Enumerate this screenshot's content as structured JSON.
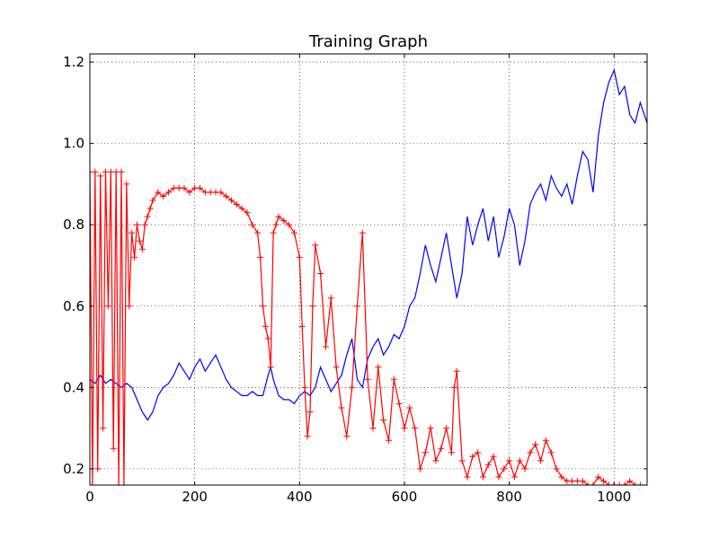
{
  "chart_data": {
    "type": "line",
    "title": "Training Graph",
    "xlabel": "",
    "ylabel": "",
    "xlim": [
      0,
      1063
    ],
    "ylim": [
      0.16,
      1.22
    ],
    "grid": true,
    "xticks": [
      0,
      200,
      400,
      600,
      800,
      1000
    ],
    "xtick_labels": [
      "0",
      "200",
      "400",
      "600",
      "800",
      "1000"
    ],
    "yticks": [
      0.2,
      0.4,
      0.6,
      0.8,
      1.0,
      1.2
    ],
    "ytick_labels": [
      "0.2",
      "0.4",
      "0.6",
      "0.8",
      "1.0",
      "1.2"
    ],
    "series": [
      {
        "color": "#0000ff",
        "marker": "none",
        "x": [
          0,
          10,
          20,
          30,
          40,
          50,
          60,
          70,
          80,
          90,
          100,
          110,
          120,
          130,
          140,
          150,
          160,
          170,
          180,
          190,
          200,
          210,
          220,
          230,
          240,
          250,
          260,
          270,
          280,
          290,
          300,
          310,
          320,
          330,
          340,
          345,
          350,
          360,
          370,
          380,
          390,
          400,
          410,
          420,
          430,
          440,
          450,
          460,
          470,
          480,
          490,
          500,
          510,
          520,
          530,
          540,
          550,
          560,
          570,
          580,
          590,
          600,
          610,
          620,
          630,
          640,
          650,
          660,
          670,
          680,
          690,
          700,
          710,
          720,
          730,
          740,
          750,
          760,
          770,
          780,
          790,
          800,
          810,
          820,
          830,
          840,
          850,
          860,
          870,
          880,
          890,
          900,
          910,
          920,
          930,
          940,
          950,
          960,
          970,
          980,
          990,
          1000,
          1010,
          1020,
          1030,
          1040,
          1050,
          1063
        ],
        "y": [
          0.42,
          0.41,
          0.43,
          0.41,
          0.42,
          0.41,
          0.4,
          0.41,
          0.4,
          0.37,
          0.34,
          0.32,
          0.34,
          0.38,
          0.4,
          0.41,
          0.43,
          0.46,
          0.44,
          0.42,
          0.45,
          0.47,
          0.44,
          0.46,
          0.48,
          0.45,
          0.42,
          0.4,
          0.39,
          0.38,
          0.38,
          0.39,
          0.38,
          0.38,
          0.43,
          0.45,
          0.42,
          0.38,
          0.37,
          0.37,
          0.36,
          0.38,
          0.39,
          0.38,
          0.4,
          0.45,
          0.42,
          0.39,
          0.41,
          0.43,
          0.48,
          0.52,
          0.42,
          0.4,
          0.47,
          0.5,
          0.52,
          0.48,
          0.5,
          0.53,
          0.52,
          0.55,
          0.6,
          0.62,
          0.68,
          0.75,
          0.7,
          0.66,
          0.72,
          0.78,
          0.7,
          0.62,
          0.68,
          0.82,
          0.75,
          0.8,
          0.84,
          0.76,
          0.82,
          0.72,
          0.77,
          0.84,
          0.8,
          0.7,
          0.76,
          0.85,
          0.88,
          0.9,
          0.86,
          0.92,
          0.89,
          0.87,
          0.9,
          0.85,
          0.92,
          0.98,
          0.96,
          0.88,
          1.02,
          1.1,
          1.15,
          1.18,
          1.12,
          1.14,
          1.07,
          1.05,
          1.1,
          1.05
        ]
      },
      {
        "color": "#ff0000",
        "marker": "+",
        "x": [
          0,
          5,
          10,
          15,
          20,
          25,
          30,
          35,
          40,
          45,
          50,
          55,
          60,
          65,
          70,
          75,
          80,
          85,
          90,
          95,
          100,
          105,
          110,
          115,
          120,
          130,
          140,
          150,
          160,
          170,
          180,
          190,
          200,
          210,
          220,
          230,
          240,
          250,
          260,
          270,
          280,
          290,
          300,
          310,
          320,
          325,
          330,
          335,
          340,
          345,
          350,
          355,
          360,
          370,
          380,
          390,
          400,
          405,
          410,
          415,
          420,
          425,
          430,
          440,
          450,
          460,
          470,
          480,
          490,
          500,
          510,
          520,
          530,
          540,
          550,
          560,
          570,
          580,
          590,
          600,
          610,
          620,
          630,
          640,
          650,
          660,
          670,
          680,
          690,
          695,
          700,
          710,
          720,
          730,
          740,
          750,
          760,
          770,
          780,
          790,
          800,
          810,
          820,
          830,
          840,
          850,
          860,
          870,
          880,
          890,
          900,
          910,
          920,
          930,
          940,
          950,
          960,
          970,
          980,
          990,
          1000,
          1010,
          1020,
          1030,
          1040,
          1050,
          1063
        ],
        "y": [
          0.93,
          0.16,
          0.93,
          0.2,
          0.92,
          0.3,
          0.93,
          0.6,
          0.93,
          0.25,
          0.93,
          0.16,
          0.93,
          0.16,
          0.9,
          0.6,
          0.78,
          0.72,
          0.8,
          0.76,
          0.74,
          0.8,
          0.82,
          0.84,
          0.86,
          0.88,
          0.87,
          0.88,
          0.89,
          0.89,
          0.89,
          0.88,
          0.89,
          0.89,
          0.88,
          0.88,
          0.88,
          0.88,
          0.87,
          0.86,
          0.85,
          0.84,
          0.83,
          0.8,
          0.78,
          0.72,
          0.6,
          0.55,
          0.52,
          0.45,
          0.78,
          0.8,
          0.82,
          0.81,
          0.8,
          0.78,
          0.72,
          0.55,
          0.4,
          0.28,
          0.34,
          0.6,
          0.75,
          0.68,
          0.5,
          0.62,
          0.45,
          0.35,
          0.28,
          0.4,
          0.6,
          0.78,
          0.42,
          0.3,
          0.45,
          0.32,
          0.27,
          0.42,
          0.36,
          0.3,
          0.35,
          0.3,
          0.2,
          0.24,
          0.3,
          0.22,
          0.25,
          0.3,
          0.24,
          0.4,
          0.44,
          0.22,
          0.18,
          0.23,
          0.24,
          0.18,
          0.21,
          0.23,
          0.18,
          0.2,
          0.22,
          0.18,
          0.22,
          0.2,
          0.24,
          0.26,
          0.22,
          0.27,
          0.24,
          0.2,
          0.18,
          0.17,
          0.17,
          0.17,
          0.17,
          0.16,
          0.16,
          0.18,
          0.17,
          0.16,
          0.16,
          0.16,
          0.16,
          0.17,
          0.16,
          0.16,
          0.16
        ]
      }
    ]
  }
}
